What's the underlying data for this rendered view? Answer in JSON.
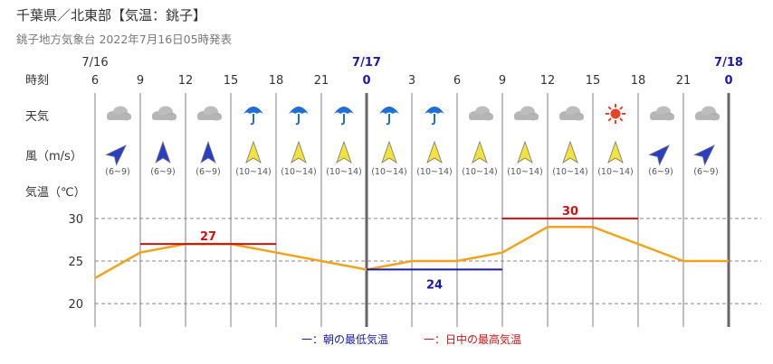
{
  "header": {
    "title": "千葉県／北東部【気温：銚子】",
    "subtitle": "銚子地方気象台 2022年7月16日05時発表"
  },
  "row_labels": {
    "time": "時刻",
    "weather": "天気",
    "wind": "風（m/s）",
    "temp": "気温（℃）"
  },
  "dates": [
    {
      "label": "7/16",
      "bold": false,
      "col": 0
    },
    {
      "label": "7/17",
      "bold": true,
      "col": 6
    },
    {
      "label": "7/18",
      "bold": true,
      "col": 14
    }
  ],
  "hours": [
    "6",
    "9",
    "12",
    "15",
    "18",
    "21",
    "0",
    "3",
    "6",
    "9",
    "12",
    "15",
    "18",
    "21",
    "0"
  ],
  "weather": [
    "cloudy-icon",
    "cloudy-icon",
    "cloudy-icon",
    "umbrella-icon",
    "umbrella-icon",
    "umbrella-icon",
    "umbrella-icon",
    "umbrella-icon",
    "cloudy-icon",
    "cloudy-icon",
    "cloudy-icon",
    "sunny-icon",
    "cloudy-icon",
    "cloudy-icon"
  ],
  "wind": [
    {
      "dir": "NE",
      "speed": "(6~9)",
      "color": "#2a3ec4"
    },
    {
      "dir": "N",
      "speed": "(6~9)",
      "color": "#2a3ec4"
    },
    {
      "dir": "N",
      "speed": "(6~9)",
      "color": "#2a3ec4"
    },
    {
      "dir": "N",
      "speed": "(10~14)",
      "color": "#f2e23a"
    },
    {
      "dir": "N",
      "speed": "(10~14)",
      "color": "#f2e23a"
    },
    {
      "dir": "N",
      "speed": "(10~14)",
      "color": "#f2e23a"
    },
    {
      "dir": "N",
      "speed": "(10~14)",
      "color": "#f2e23a"
    },
    {
      "dir": "N",
      "speed": "(10~14)",
      "color": "#f2e23a"
    },
    {
      "dir": "N",
      "speed": "(10~14)",
      "color": "#f2e23a"
    },
    {
      "dir": "N",
      "speed": "(10~14)",
      "color": "#f2e23a"
    },
    {
      "dir": "N",
      "speed": "(10~14)",
      "color": "#f2e23a"
    },
    {
      "dir": "N",
      "speed": "(10~14)",
      "color": "#f2e23a"
    },
    {
      "dir": "NE",
      "speed": "(6~9)",
      "color": "#2a3ec4"
    },
    {
      "dir": "NE",
      "speed": "(6~9)",
      "color": "#2a3ec4"
    }
  ],
  "chart_data": {
    "type": "line",
    "x": [
      "6",
      "9",
      "12",
      "15",
      "18",
      "21",
      "0",
      "3",
      "6",
      "9",
      "12",
      "15",
      "18",
      "21",
      "0"
    ],
    "series": [
      {
        "values": [
          23,
          26,
          27,
          27,
          26,
          25,
          24,
          25,
          25,
          26,
          29,
          29,
          27,
          25,
          25
        ],
        "color": "#f2a31c"
      }
    ],
    "ylim": [
      18,
      32
    ],
    "yticks": [
      20,
      25,
      30
    ],
    "max_temp": {
      "label": "27",
      "value": 27,
      "from_col": 1,
      "to_col": 4,
      "color": "#cc1111"
    },
    "max_temp2": {
      "label": "30",
      "value": 30,
      "from_col": 9,
      "to_col": 12,
      "color": "#cc1111"
    },
    "min_temp": {
      "label": "24",
      "value": 24,
      "from_col": 6,
      "to_col": 9,
      "color": "#1a1aa8"
    }
  },
  "legend": {
    "min": "一：朝の最低気温",
    "max": "一：日中の最高気温"
  }
}
